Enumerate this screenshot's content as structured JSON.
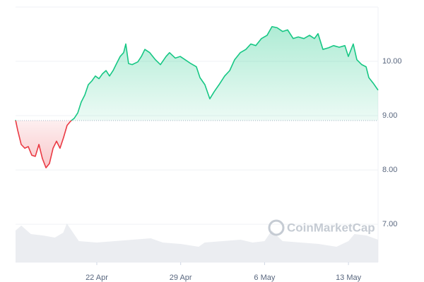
{
  "chart_data": {
    "type": "line",
    "x": [
      15.22,
      15.4,
      15.69,
      15.99,
      16.28,
      16.58,
      16.87,
      17.17,
      17.46,
      17.76,
      18.05,
      18.35,
      18.64,
      18.93,
      19.23,
      19.52,
      19.82,
      20.11,
      20.41,
      20.7,
      21.0,
      21.29,
      21.59,
      21.88,
      22.18,
      22.47,
      22.77,
      23.06,
      23.36,
      23.65,
      23.95,
      24.24,
      24.42,
      24.65,
      24.95,
      25.42,
      25.72,
      26.01,
      26.42,
      26.89,
      27.31,
      27.78,
      28.07,
      28.55,
      28.96,
      29.37,
      29.84,
      30.31,
      30.61,
      31.02,
      31.43,
      31.79,
      32.2,
      32.67,
      33.09,
      33.5,
      33.97,
      34.44,
      34.85,
      35.27,
      35.74,
      36.21,
      36.62,
      37.04,
      37.51,
      37.92,
      38.39,
      38.81,
      39.28,
      39.75,
      40.16,
      40.46,
      40.87,
      41.34,
      41.75,
      42.23,
      42.7,
      42.99,
      43.4,
      43.7,
      44.11,
      44.47,
      44.7,
      45.06,
      45.47
    ],
    "values": [
      8.92,
      8.73,
      8.47,
      8.4,
      8.43,
      8.27,
      8.25,
      8.47,
      8.21,
      8.04,
      8.12,
      8.4,
      8.53,
      8.4,
      8.6,
      8.82,
      8.9,
      8.95,
      9.05,
      9.25,
      9.38,
      9.57,
      9.64,
      9.73,
      9.68,
      9.77,
      9.83,
      9.73,
      9.83,
      9.96,
      10.09,
      10.16,
      10.32,
      9.96,
      9.94,
      9.99,
      10.09,
      10.22,
      10.16,
      10.03,
      9.94,
      10.09,
      10.16,
      10.06,
      10.09,
      10.03,
      9.96,
      9.9,
      9.7,
      9.57,
      9.31,
      9.44,
      9.57,
      9.73,
      9.83,
      10.03,
      10.16,
      10.22,
      10.32,
      10.29,
      10.42,
      10.48,
      10.64,
      10.62,
      10.55,
      10.58,
      10.42,
      10.45,
      10.42,
      10.48,
      10.42,
      10.51,
      10.22,
      10.25,
      10.29,
      10.26,
      10.29,
      10.09,
      10.32,
      10.03,
      9.94,
      9.9,
      9.7,
      9.6,
      9.47
    ],
    "baseline": 8.91,
    "up_color": "#16c784",
    "down_color": "#ea3943",
    "xlim": [
      15.22,
      45.47
    ],
    "xticks": [
      {
        "value": 22,
        "label": "22 Apr"
      },
      {
        "value": 29,
        "label": "29 Apr"
      },
      {
        "value": 36,
        "label": "6 May"
      },
      {
        "value": 43,
        "label": "13 May"
      }
    ],
    "ylim": [
      6.3,
      11.0
    ],
    "yticks": [
      {
        "value": 7,
        "label": "7.00"
      },
      {
        "value": 8,
        "label": "8.00"
      },
      {
        "value": 9,
        "label": "9.00"
      },
      {
        "value": 10,
        "label": "10.00"
      }
    ],
    "grid": true,
    "volume": {
      "color": "#e6e9ee",
      "vlim": [
        0,
        100
      ],
      "x": [
        15.22,
        15.7,
        16.5,
        17.5,
        18.5,
        19.2,
        19.5,
        20.5,
        22,
        23.5,
        25,
        26.5,
        27.5,
        29,
        30.5,
        31,
        32.5,
        34,
        35,
        36,
        36.6,
        37.5,
        39,
        40.5,
        42,
        43,
        43.5,
        44.5,
        45.47
      ],
      "values": [
        45,
        52,
        40,
        38,
        35,
        42,
        55,
        30,
        28,
        30,
        32,
        34,
        28,
        26,
        22,
        28,
        30,
        32,
        28,
        30,
        45,
        30,
        28,
        26,
        22,
        30,
        40,
        38,
        32
      ]
    },
    "watermark": "CoinMarketCap"
  }
}
